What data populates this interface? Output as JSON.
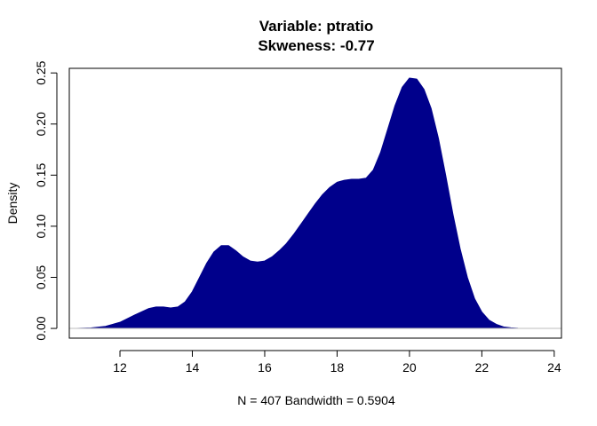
{
  "chart_data": {
    "type": "area",
    "title": "Variable: ptratio",
    "subtitle": "Skweness: -0.77",
    "xlabel": "N = 407   Bandwidth = 0.5904",
    "ylabel": "Density",
    "xlim": [
      10.6,
      24.2
    ],
    "ylim": [
      -0.0095,
      0.2545
    ],
    "xticks": [
      12,
      14,
      16,
      18,
      20,
      22,
      24
    ],
    "xtick_labels": [
      "12",
      "14",
      "16",
      "18",
      "20",
      "22",
      "24"
    ],
    "yticks": [
      0.0,
      0.05,
      0.1,
      0.15,
      0.2,
      0.25
    ],
    "ytick_labels": [
      "0.00",
      "0.05",
      "0.10",
      "0.15",
      "0.20",
      "0.25"
    ],
    "grid": false,
    "baseline": 0,
    "colors": {
      "fill": "#00008B",
      "baseline": "#BEBEBE",
      "axis": "#000000"
    },
    "series": [
      {
        "x": [
          10.8,
          11.2,
          11.6,
          12.0,
          12.4,
          12.8,
          13.0,
          13.2,
          13.4,
          13.6,
          13.8,
          14.0,
          14.2,
          14.4,
          14.6,
          14.8,
          15.0,
          15.2,
          15.4,
          15.6,
          15.8,
          16.0,
          16.2,
          16.4,
          16.6,
          16.8,
          17.0,
          17.2,
          17.4,
          17.6,
          17.8,
          18.0,
          18.2,
          18.4,
          18.6,
          18.8,
          19.0,
          19.2,
          19.4,
          19.6,
          19.8,
          20.0,
          20.2,
          20.4,
          20.6,
          20.8,
          21.0,
          21.2,
          21.4,
          21.6,
          21.8,
          22.0,
          22.2,
          22.4,
          22.6,
          22.8,
          23.0,
          23.4,
          23.8
        ],
        "y": [
          0.0,
          0.0005,
          0.002,
          0.006,
          0.013,
          0.0195,
          0.021,
          0.021,
          0.02,
          0.021,
          0.026,
          0.036,
          0.05,
          0.064,
          0.075,
          0.081,
          0.081,
          0.076,
          0.07,
          0.066,
          0.065,
          0.066,
          0.07,
          0.076,
          0.083,
          0.092,
          0.102,
          0.112,
          0.122,
          0.131,
          0.138,
          0.143,
          0.145,
          0.146,
          0.146,
          0.147,
          0.155,
          0.172,
          0.195,
          0.218,
          0.236,
          0.245,
          0.244,
          0.234,
          0.215,
          0.186,
          0.15,
          0.112,
          0.078,
          0.05,
          0.029,
          0.016,
          0.008,
          0.004,
          0.0015,
          0.0006,
          0.0002,
          0.0,
          0.0
        ]
      }
    ]
  }
}
